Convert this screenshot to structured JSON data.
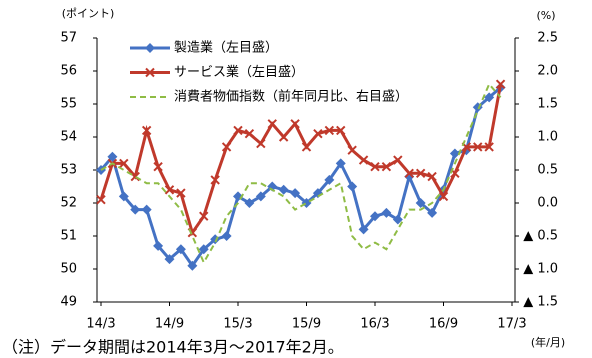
{
  "chart_data": {
    "type": "line",
    "y_unit_label": "(ポイント)",
    "y2_unit_label": "(%)",
    "x_unit_label": "(年/月)",
    "note": "（注）データ期間は2014年3月～2017年2月。",
    "categories": [
      "14/3",
      null,
      null,
      null,
      null,
      null,
      "14/9",
      null,
      null,
      null,
      null,
      null,
      "15/3",
      null,
      null,
      null,
      null,
      null,
      "15/9",
      null,
      null,
      null,
      null,
      null,
      "16/3",
      null,
      null,
      null,
      null,
      null,
      "16/9",
      null,
      null,
      null,
      null,
      null,
      "17/3"
    ],
    "series": [
      {
        "name": "製造業（左目盛）",
        "color": "#4472c4",
        "marker": "diamond",
        "values": [
          53.0,
          53.4,
          52.2,
          51.8,
          51.8,
          50.7,
          50.3,
          50.6,
          50.1,
          50.6,
          50.9,
          51.0,
          52.2,
          52.0,
          52.2,
          52.5,
          52.4,
          52.3,
          52.0,
          52.3,
          52.7,
          53.2,
          52.5,
          51.2,
          51.6,
          51.7,
          51.5,
          52.8,
          52.0,
          51.7,
          52.4,
          53.5,
          53.6,
          54.9,
          55.2,
          55.5,
          null
        ]
      },
      {
        "name": "サービス業（左目盛）",
        "color": "#c0392b",
        "marker": "x",
        "values": [
          52.1,
          53.2,
          53.2,
          52.8,
          54.2,
          53.1,
          52.4,
          52.3,
          51.1,
          51.6,
          52.7,
          53.7,
          54.2,
          54.1,
          53.8,
          54.4,
          54.0,
          54.4,
          53.7,
          54.1,
          54.2,
          54.2,
          53.6,
          53.3,
          53.1,
          53.1,
          53.3,
          52.9,
          52.9,
          52.8,
          52.2,
          52.9,
          53.7,
          53.7,
          53.7,
          55.6,
          null
        ]
      },
      {
        "name": "消費者物価指数（前年同月比、右目盛）",
        "color": "#8fbc45",
        "marker": "dash",
        "axis": "y2",
        "values": [
          0.5,
          0.6,
          0.5,
          0.4,
          0.3,
          0.3,
          0.1,
          -0.1,
          -0.5,
          -0.9,
          -0.6,
          -0.2,
          0.0,
          0.3,
          0.3,
          0.2,
          0.1,
          -0.1,
          0.0,
          0.1,
          0.2,
          0.3,
          -0.5,
          -0.7,
          -0.6,
          -0.7,
          -0.4,
          -0.1,
          -0.1,
          0.0,
          0.2,
          0.6,
          1.0,
          1.4,
          1.8,
          1.6,
          null
        ]
      }
    ],
    "ylim": [
      49,
      57
    ],
    "yticks": [
      49,
      50,
      51,
      52,
      53,
      54,
      55,
      56,
      57
    ],
    "y2lim": [
      -1.5,
      2.5
    ],
    "y2ticks": [
      {
        "value": -1.5,
        "label": "▲ 1.5"
      },
      {
        "value": -1,
        "label": "▲ 1.0"
      },
      {
        "value": -0.5,
        "label": "▲ 0.5"
      },
      {
        "value": 0,
        "label": "0.0"
      },
      0.5,
      {
        "value": 1,
        "label": "1.0"
      },
      1.5,
      {
        "value": 2,
        "label": "2.0"
      },
      2.5
    ],
    "grid": false
  }
}
